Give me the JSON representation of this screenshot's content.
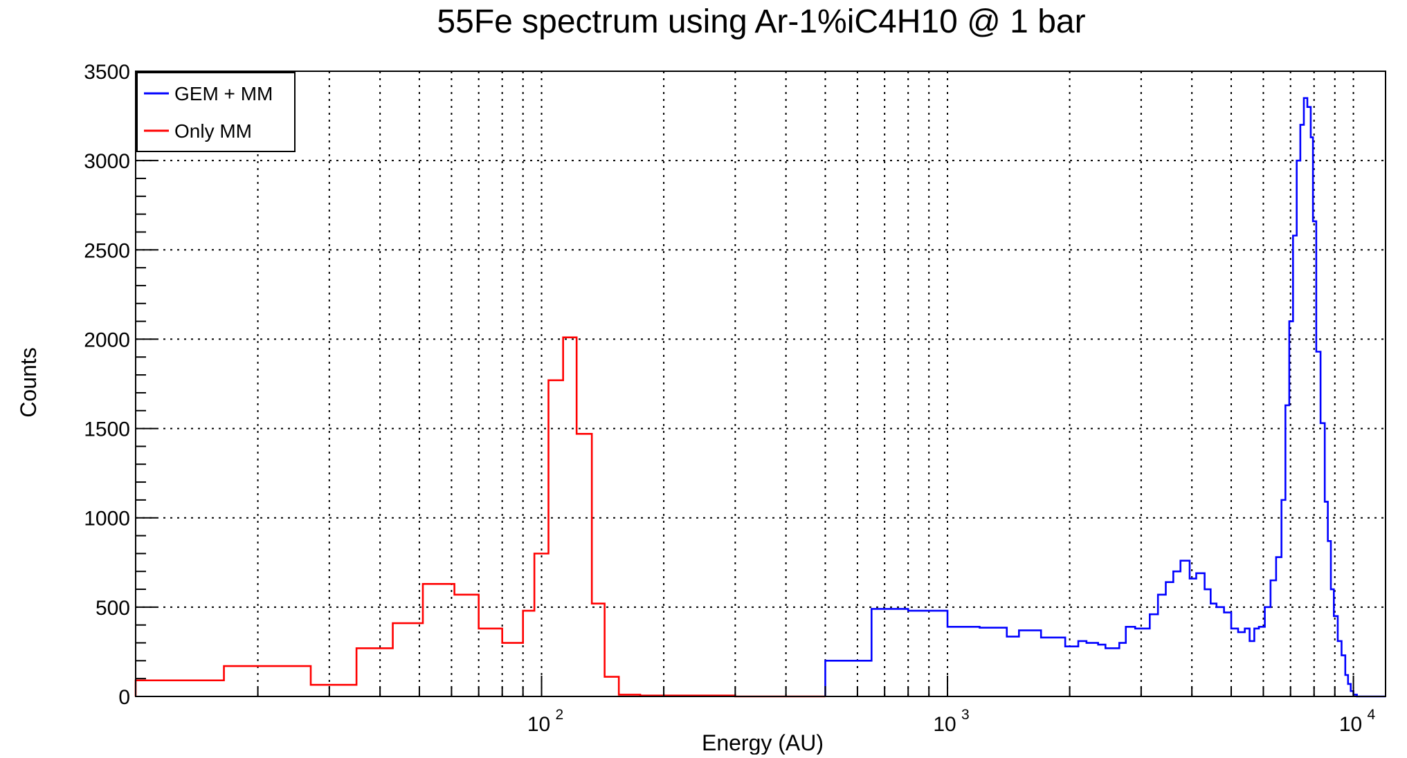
{
  "chart_data": {
    "type": "line",
    "title": "55Fe spectrum using Ar-1%iC4H10 @ 1 bar",
    "xlabel": "Energy (AU)",
    "ylabel": "Counts",
    "x_scale": "log",
    "xlim": [
      10,
      12000
    ],
    "ylim": [
      0,
      3500
    ],
    "y_ticks": [
      0,
      500,
      1000,
      1500,
      2000,
      2500,
      3000,
      3500
    ],
    "x_tick_labels": [
      {
        "value": 100,
        "base": "10",
        "exp": "2"
      },
      {
        "value": 1000,
        "base": "10",
        "exp": "3"
      },
      {
        "value": 10000,
        "base": "10",
        "exp": "4"
      }
    ],
    "grid": true,
    "legend_position": "top-left",
    "series": [
      {
        "name": "GEM + MM",
        "color": "#0000ff",
        "style": "step",
        "bins": [
          [
            500,
            650,
            200
          ],
          [
            650,
            800,
            490
          ],
          [
            800,
            1000,
            480
          ],
          [
            1000,
            1200,
            390
          ],
          [
            1200,
            1400,
            385
          ],
          [
            1400,
            1500,
            335
          ],
          [
            1500,
            1700,
            370
          ],
          [
            1700,
            1950,
            330
          ],
          [
            1950,
            2100,
            280
          ],
          [
            2100,
            2200,
            310
          ],
          [
            2200,
            2350,
            300
          ],
          [
            2350,
            2450,
            290
          ],
          [
            2450,
            2650,
            270
          ],
          [
            2650,
            2750,
            300
          ],
          [
            2750,
            2900,
            390
          ],
          [
            2900,
            3150,
            380
          ],
          [
            3150,
            3300,
            460
          ],
          [
            3300,
            3450,
            570
          ],
          [
            3450,
            3600,
            640
          ],
          [
            3600,
            3750,
            700
          ],
          [
            3750,
            3950,
            760
          ],
          [
            3950,
            4100,
            660
          ],
          [
            4100,
            4300,
            690
          ],
          [
            4300,
            4450,
            600
          ],
          [
            4450,
            4600,
            520
          ],
          [
            4600,
            4800,
            500
          ],
          [
            4800,
            5000,
            470
          ],
          [
            5000,
            5200,
            380
          ],
          [
            5200,
            5400,
            360
          ],
          [
            5400,
            5550,
            380
          ],
          [
            5550,
            5700,
            310
          ],
          [
            5700,
            5850,
            380
          ],
          [
            5850,
            6050,
            390
          ],
          [
            6050,
            6250,
            500
          ],
          [
            6250,
            6450,
            650
          ],
          [
            6450,
            6650,
            780
          ],
          [
            6650,
            6800,
            1100
          ],
          [
            6800,
            6950,
            1630
          ],
          [
            6950,
            7100,
            2100
          ],
          [
            7100,
            7250,
            2580
          ],
          [
            7250,
            7400,
            3000
          ],
          [
            7400,
            7550,
            3200
          ],
          [
            7550,
            7700,
            3350
          ],
          [
            7700,
            7850,
            3300
          ],
          [
            7850,
            7950,
            3130
          ],
          [
            7950,
            8100,
            2660
          ],
          [
            8100,
            8300,
            1930
          ],
          [
            8300,
            8500,
            1530
          ],
          [
            8500,
            8650,
            1090
          ],
          [
            8650,
            8800,
            870
          ],
          [
            8800,
            8950,
            600
          ],
          [
            8950,
            9150,
            450
          ],
          [
            9150,
            9350,
            310
          ],
          [
            9350,
            9550,
            230
          ],
          [
            9550,
            9700,
            120
          ],
          [
            9700,
            9850,
            70
          ],
          [
            9850,
            10000,
            30
          ],
          [
            10000,
            10200,
            10
          ],
          [
            10200,
            12000,
            0
          ]
        ]
      },
      {
        "name": "Only MM",
        "color": "#ff0000",
        "style": "step",
        "bins": [
          [
            10,
            16.5,
            90
          ],
          [
            16.5,
            27,
            170
          ],
          [
            27,
            35,
            65
          ],
          [
            35,
            43,
            270
          ],
          [
            43,
            51,
            410
          ],
          [
            51,
            61,
            630
          ],
          [
            61,
            70,
            570
          ],
          [
            70,
            80,
            380
          ],
          [
            80,
            90,
            300
          ],
          [
            90,
            96,
            480
          ],
          [
            96,
            104,
            800
          ],
          [
            104,
            113,
            1770
          ],
          [
            113,
            122,
            2010
          ],
          [
            122,
            133,
            1470
          ],
          [
            133,
            143,
            520
          ],
          [
            143,
            155,
            110
          ],
          [
            155,
            175,
            10
          ],
          [
            175,
            300,
            5
          ],
          [
            300,
            500,
            0
          ]
        ]
      }
    ]
  }
}
